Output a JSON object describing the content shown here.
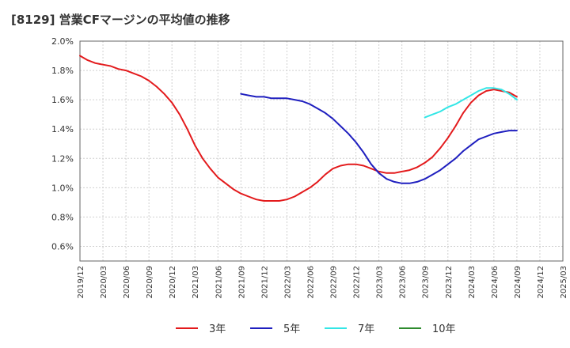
{
  "title": "[8129]  営業CFマージンの平均値の推移",
  "chart_data": {
    "type": "line",
    "title": "[8129]  営業CFマージンの平均値の推移",
    "ylim": [
      0.5,
      2.0
    ],
    "y_ticks": [
      "0.6%",
      "0.8%",
      "1.0%",
      "1.2%",
      "1.4%",
      "1.6%",
      "1.8%",
      "2.0%"
    ],
    "y_tick_values": [
      0.6,
      0.8,
      1.0,
      1.2,
      1.4,
      1.6,
      1.8,
      2.0
    ],
    "x_ticks": [
      "2019/12",
      "2020/03",
      "2020/06",
      "2020/09",
      "2020/12",
      "2021/03",
      "2021/06",
      "2021/09",
      "2021/12",
      "2022/03",
      "2022/06",
      "2022/09",
      "2022/12",
      "2023/03",
      "2023/06",
      "2023/09",
      "2023/12",
      "2024/03",
      "2024/06",
      "2024/09",
      "2024/12",
      "2025/03"
    ],
    "grid": true,
    "legend_position": "bottom",
    "series": [
      {
        "name": "3年",
        "color": "#e31a1c",
        "values": [
          [
            "2019/12",
            1.9
          ],
          [
            "2020/01",
            1.87
          ],
          [
            "2020/02",
            1.85
          ],
          [
            "2020/03",
            1.84
          ],
          [
            "2020/04",
            1.83
          ],
          [
            "2020/05",
            1.81
          ],
          [
            "2020/06",
            1.8
          ],
          [
            "2020/07",
            1.78
          ],
          [
            "2020/08",
            1.76
          ],
          [
            "2020/09",
            1.73
          ],
          [
            "2020/10",
            1.69
          ],
          [
            "2020/11",
            1.64
          ],
          [
            "2020/12",
            1.58
          ],
          [
            "2021/01",
            1.5
          ],
          [
            "2021/02",
            1.4
          ],
          [
            "2021/03",
            1.29
          ],
          [
            "2021/04",
            1.2
          ],
          [
            "2021/05",
            1.13
          ],
          [
            "2021/06",
            1.07
          ],
          [
            "2021/07",
            1.03
          ],
          [
            "2021/08",
            0.99
          ],
          [
            "2021/09",
            0.96
          ],
          [
            "2021/10",
            0.94
          ],
          [
            "2021/11",
            0.92
          ],
          [
            "2021/12",
            0.91
          ],
          [
            "2022/01",
            0.91
          ],
          [
            "2022/02",
            0.91
          ],
          [
            "2022/03",
            0.92
          ],
          [
            "2022/04",
            0.94
          ],
          [
            "2022/05",
            0.97
          ],
          [
            "2022/06",
            1.0
          ],
          [
            "2022/07",
            1.04
          ],
          [
            "2022/08",
            1.09
          ],
          [
            "2022/09",
            1.13
          ],
          [
            "2022/10",
            1.15
          ],
          [
            "2022/11",
            1.16
          ],
          [
            "2022/12",
            1.16
          ],
          [
            "2023/01",
            1.15
          ],
          [
            "2023/02",
            1.13
          ],
          [
            "2023/03",
            1.11
          ],
          [
            "2023/04",
            1.1
          ],
          [
            "2023/05",
            1.1
          ],
          [
            "2023/06",
            1.11
          ],
          [
            "2023/07",
            1.12
          ],
          [
            "2023/08",
            1.14
          ],
          [
            "2023/09",
            1.17
          ],
          [
            "2023/10",
            1.21
          ],
          [
            "2023/11",
            1.27
          ],
          [
            "2023/12",
            1.34
          ],
          [
            "2024/01",
            1.42
          ],
          [
            "2024/02",
            1.51
          ],
          [
            "2024/03",
            1.58
          ],
          [
            "2024/04",
            1.63
          ],
          [
            "2024/05",
            1.66
          ],
          [
            "2024/06",
            1.67
          ],
          [
            "2024/07",
            1.66
          ],
          [
            "2024/08",
            1.65
          ],
          [
            "2024/09",
            1.62
          ]
        ]
      },
      {
        "name": "5年",
        "color": "#1f1fbf",
        "values": [
          [
            "2021/09",
            1.64
          ],
          [
            "2021/10",
            1.63
          ],
          [
            "2021/11",
            1.62
          ],
          [
            "2021/12",
            1.62
          ],
          [
            "2022/01",
            1.61
          ],
          [
            "2022/02",
            1.61
          ],
          [
            "2022/03",
            1.61
          ],
          [
            "2022/04",
            1.6
          ],
          [
            "2022/05",
            1.59
          ],
          [
            "2022/06",
            1.57
          ],
          [
            "2022/07",
            1.54
          ],
          [
            "2022/08",
            1.51
          ],
          [
            "2022/09",
            1.47
          ],
          [
            "2022/10",
            1.42
          ],
          [
            "2022/11",
            1.37
          ],
          [
            "2022/12",
            1.31
          ],
          [
            "2023/01",
            1.24
          ],
          [
            "2023/02",
            1.16
          ],
          [
            "2023/03",
            1.1
          ],
          [
            "2023/04",
            1.06
          ],
          [
            "2023/05",
            1.04
          ],
          [
            "2023/06",
            1.03
          ],
          [
            "2023/07",
            1.03
          ],
          [
            "2023/08",
            1.04
          ],
          [
            "2023/09",
            1.06
          ],
          [
            "2023/10",
            1.09
          ],
          [
            "2023/11",
            1.12
          ],
          [
            "2023/12",
            1.16
          ],
          [
            "2024/01",
            1.2
          ],
          [
            "2024/02",
            1.25
          ],
          [
            "2024/03",
            1.29
          ],
          [
            "2024/04",
            1.33
          ],
          [
            "2024/05",
            1.35
          ],
          [
            "2024/06",
            1.37
          ],
          [
            "2024/07",
            1.38
          ],
          [
            "2024/08",
            1.39
          ],
          [
            "2024/09",
            1.39
          ]
        ]
      },
      {
        "name": "7年",
        "color": "#33e6e6",
        "values": [
          [
            "2023/09",
            1.48
          ],
          [
            "2023/10",
            1.5
          ],
          [
            "2023/11",
            1.52
          ],
          [
            "2023/12",
            1.55
          ],
          [
            "2024/01",
            1.57
          ],
          [
            "2024/02",
            1.6
          ],
          [
            "2024/03",
            1.63
          ],
          [
            "2024/04",
            1.66
          ],
          [
            "2024/05",
            1.68
          ],
          [
            "2024/06",
            1.68
          ],
          [
            "2024/07",
            1.67
          ],
          [
            "2024/08",
            1.64
          ],
          [
            "2024/09",
            1.6
          ]
        ]
      },
      {
        "name": "10年",
        "color": "#2e8b2e",
        "values": []
      }
    ]
  }
}
